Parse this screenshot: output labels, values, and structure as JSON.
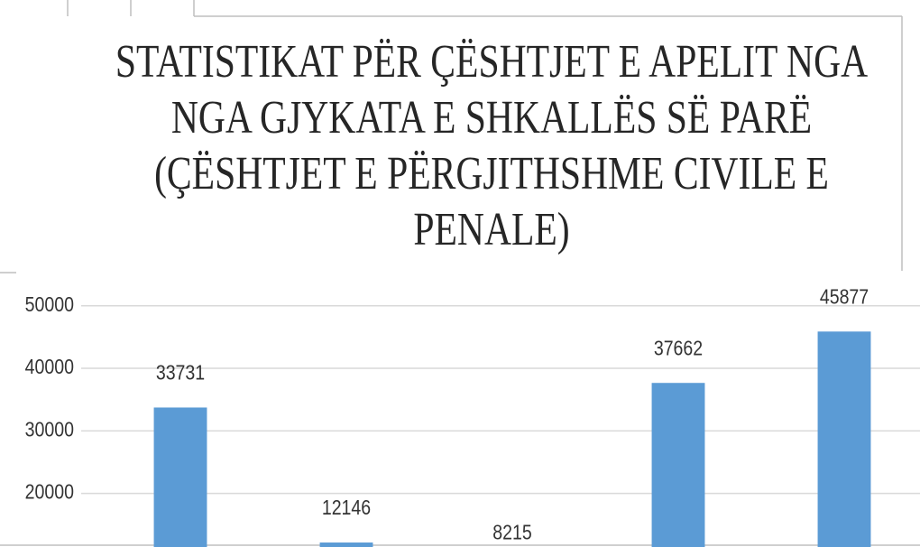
{
  "chart_data": {
    "type": "bar",
    "title": [
      "STATISTIKAT PËR ÇËSHTJET E APELIT  NGA",
      "NGA GJYKATA E SHKALLËS  SË PARË",
      "(ÇËSHTJET E PËRGJITHSHME CIVILE E",
      "PENALE)"
    ],
    "categories": [
      null,
      null,
      null,
      null,
      null
    ],
    "values": [
      33731,
      12146,
      8215,
      37662,
      45877
    ],
    "color": "#5b9bd5",
    "ylim": [
      11430,
      55300
    ],
    "yticks": [
      20000,
      30000,
      40000,
      50000
    ],
    "grid": true
  }
}
